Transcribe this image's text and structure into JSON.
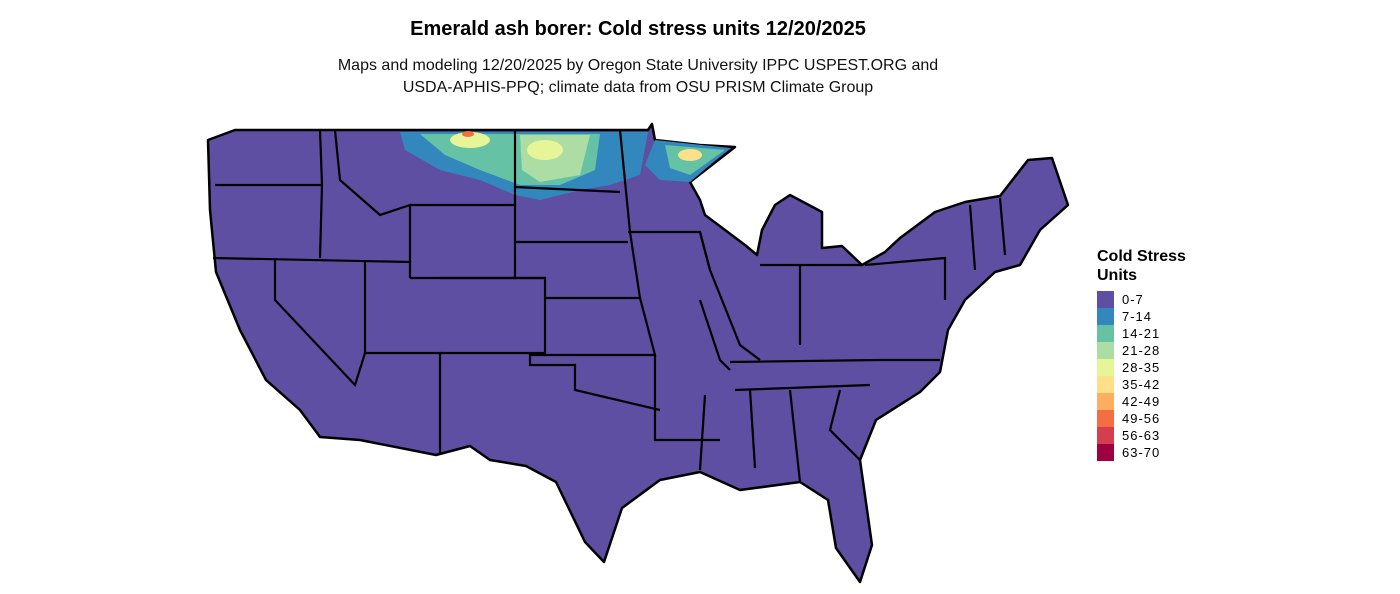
{
  "title": "Emerald ash borer: Cold stress units 12/20/2025",
  "subtitle_line1": "Maps and modeling 12/20/2025 by Oregon State University IPPC USPEST.ORG and",
  "subtitle_line2": "USDA-APHIS-PPQ; climate data from OSU PRISM Climate Group",
  "legend": {
    "title_line1": "Cold Stress",
    "title_line2": "Units",
    "items": [
      {
        "label": "0-7",
        "color": "#5e4fa2"
      },
      {
        "label": "7-14",
        "color": "#3288bd"
      },
      {
        "label": "14-21",
        "color": "#66c2a5"
      },
      {
        "label": "21-28",
        "color": "#abdda4"
      },
      {
        "label": "28-35",
        "color": "#e6f598"
      },
      {
        "label": "35-42",
        "color": "#fee08b"
      },
      {
        "label": "42-49",
        "color": "#fdae61"
      },
      {
        "label": "49-56",
        "color": "#f46d43"
      },
      {
        "label": "56-63",
        "color": "#d53e4f"
      },
      {
        "label": "63-70",
        "color": "#9e0142"
      }
    ]
  }
}
